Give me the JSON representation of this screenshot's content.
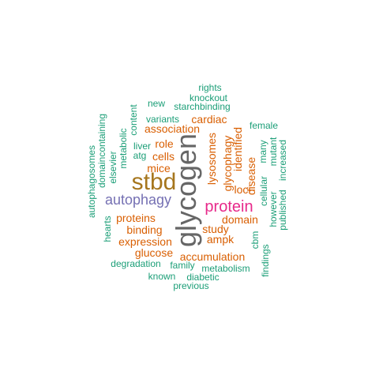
{
  "colors": {
    "teal": "#1b9e77",
    "orange": "#d95f02",
    "purple": "#7570b3",
    "magenta": "#e7298a",
    "olive": "#a6761d",
    "gray": "#666666"
  },
  "words": [
    {
      "text": "glycogen",
      "color": "gray",
      "rank": 1
    },
    {
      "text": "stbd",
      "color": "olive",
      "rank": 2
    },
    {
      "text": "protein",
      "color": "magenta",
      "rank": 3
    },
    {
      "text": "autophagy",
      "color": "purple",
      "rank": 4
    },
    {
      "text": "proteins",
      "color": "orange",
      "rank": 5
    },
    {
      "text": "binding",
      "color": "orange",
      "rank": 5
    },
    {
      "text": "expression",
      "color": "orange",
      "rank": 5
    },
    {
      "text": "glycophagy",
      "color": "orange",
      "rank": 5
    },
    {
      "text": "lysosomes",
      "color": "orange",
      "rank": 5
    },
    {
      "text": "cells",
      "color": "orange",
      "rank": 5
    },
    {
      "text": "mice",
      "color": "orange",
      "rank": 5
    },
    {
      "text": "role",
      "color": "orange",
      "rank": 5
    },
    {
      "text": "association",
      "color": "orange",
      "rank": 5
    },
    {
      "text": "cardiac",
      "color": "orange",
      "rank": 5
    },
    {
      "text": "identified",
      "color": "orange",
      "rank": 5
    },
    {
      "text": "loci",
      "color": "orange",
      "rank": 5
    },
    {
      "text": "domain",
      "color": "orange",
      "rank": 5
    },
    {
      "text": "study",
      "color": "orange",
      "rank": 5
    },
    {
      "text": "ampk",
      "color": "orange",
      "rank": 5
    },
    {
      "text": "glucose",
      "color": "orange",
      "rank": 5
    },
    {
      "text": "accumulation",
      "color": "orange",
      "rank": 5
    },
    {
      "text": "disease",
      "color": "orange",
      "rank": 5
    },
    {
      "text": "rights",
      "color": "teal",
      "rank": 6
    },
    {
      "text": "knockout",
      "color": "teal",
      "rank": 6
    },
    {
      "text": "new",
      "color": "teal",
      "rank": 6
    },
    {
      "text": "starchbinding",
      "color": "teal",
      "rank": 6
    },
    {
      "text": "variants",
      "color": "teal",
      "rank": 6
    },
    {
      "text": "female",
      "color": "teal",
      "rank": 6
    },
    {
      "text": "content",
      "color": "teal",
      "rank": 6
    },
    {
      "text": "liver",
      "color": "teal",
      "rank": 6
    },
    {
      "text": "atg",
      "color": "teal",
      "rank": 6
    },
    {
      "text": "metabolic",
      "color": "teal",
      "rank": 6
    },
    {
      "text": "elsevier",
      "color": "teal",
      "rank": 6
    },
    {
      "text": "domaincontaining",
      "color": "teal",
      "rank": 6
    },
    {
      "text": "autophagosomes",
      "color": "teal",
      "rank": 6
    },
    {
      "text": "hearts",
      "color": "teal",
      "rank": 6
    },
    {
      "text": "many",
      "color": "teal",
      "rank": 6
    },
    {
      "text": "cellular",
      "color": "teal",
      "rank": 6
    },
    {
      "text": "mutant",
      "color": "teal",
      "rank": 6
    },
    {
      "text": "increased",
      "color": "teal",
      "rank": 6
    },
    {
      "text": "however",
      "color": "teal",
      "rank": 6
    },
    {
      "text": "published",
      "color": "teal",
      "rank": 6
    },
    {
      "text": "cbm",
      "color": "teal",
      "rank": 6
    },
    {
      "text": "findings",
      "color": "teal",
      "rank": 6
    },
    {
      "text": "degradation",
      "color": "teal",
      "rank": 6
    },
    {
      "text": "family",
      "color": "teal",
      "rank": 6
    },
    {
      "text": "metabolism",
      "color": "teal",
      "rank": 6
    },
    {
      "text": "known",
      "color": "teal",
      "rank": 6
    },
    {
      "text": "diabetic",
      "color": "teal",
      "rank": 6
    },
    {
      "text": "previous",
      "color": "teal",
      "rank": 6
    }
  ]
}
